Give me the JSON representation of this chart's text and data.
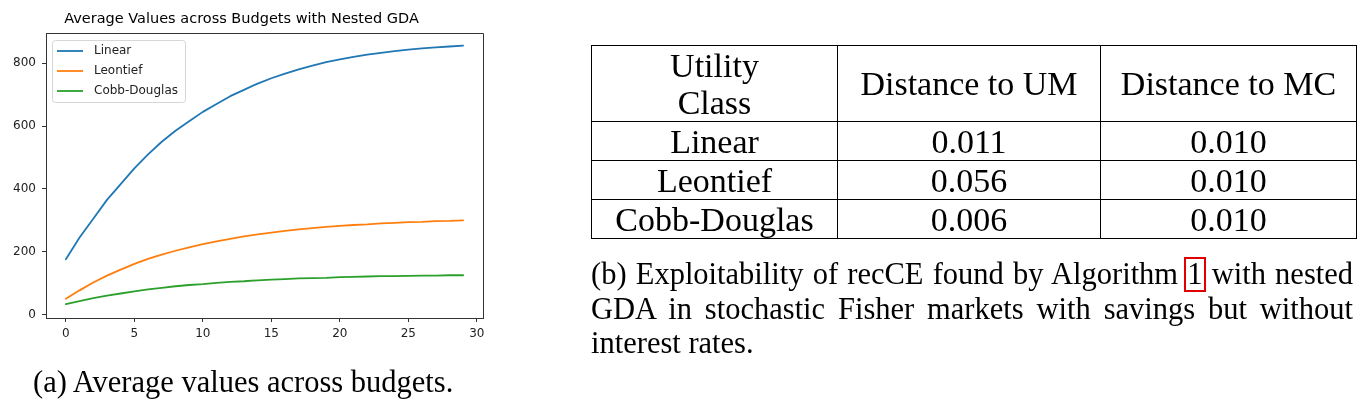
{
  "chart_data": [
    {
      "type": "line",
      "title": "Average Values across Budgets with Nested GDA",
      "x": [
        0,
        1,
        2,
        3,
        4,
        5,
        6,
        7,
        8,
        9,
        10,
        11,
        12,
        13,
        14,
        15,
        16,
        17,
        18,
        19,
        20,
        21,
        22,
        23,
        24,
        25,
        26,
        27,
        28,
        29
      ],
      "xlim": [
        -1.45,
        30.45
      ],
      "xticks": [
        0,
        5,
        10,
        15,
        20,
        25,
        30
      ],
      "ylim": [
        -11,
        896
      ],
      "yticks": [
        0,
        200,
        400,
        600,
        800
      ],
      "series": [
        {
          "name": "Linear",
          "color": "#1f77b4",
          "values": [
            176,
            245,
            305,
            365,
            415,
            465,
            510,
            550,
            585,
            615,
            645,
            670,
            695,
            715,
            735,
            752,
            767,
            780,
            792,
            803,
            812,
            820,
            827,
            833,
            838,
            843,
            847,
            850,
            853,
            856
          ]
        },
        {
          "name": "Leontief",
          "color": "#ff7f0e",
          "values": [
            50,
            77,
            102,
            124,
            143,
            161,
            177,
            191,
            203,
            214,
            224,
            233,
            241,
            249,
            255,
            261,
            266,
            271,
            275,
            279,
            282,
            285,
            287,
            290,
            292,
            294,
            295,
            297,
            298,
            300
          ]
        },
        {
          "name": "Cobb-Douglas",
          "color": "#2ca02c",
          "values": [
            33,
            43,
            52,
            60,
            67,
            74,
            80,
            85,
            90,
            94,
            97,
            101,
            104,
            106,
            109,
            111,
            113,
            115,
            116,
            117,
            119,
            120,
            121,
            122,
            122,
            123,
            124,
            124,
            125,
            125
          ]
        }
      ],
      "legend": "top left",
      "grid": false,
      "marker": "none",
      "line_style": "solid",
      "annotations": [
        "(a) Average values across budgets."
      ]
    },
    {
      "type": "other",
      "ylabel": "Utility Class",
      "categories": [
        "Distance to UM",
        "Distance to MC"
      ],
      "y_categories": [
        "Linear",
        "Leontief",
        "Cobb-Douglas"
      ],
      "cell_labels": [
        [
          "0.011",
          "0.010"
        ],
        [
          "0.056",
          "0.010"
        ],
        [
          "0.006",
          "0.010"
        ]
      ],
      "annotations": [
        "(b) Exploitability of recCE found by Algorithm 1 with nested GDA in stochastic Fisher markets with savings but without interest rates."
      ]
    }
  ]
}
